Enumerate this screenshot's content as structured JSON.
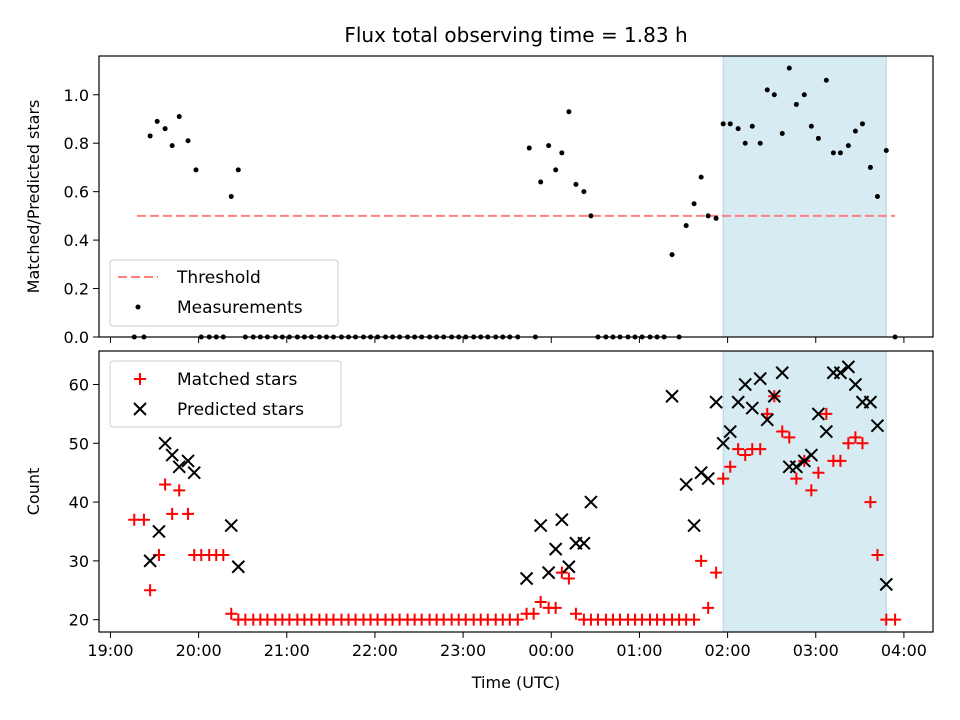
{
  "chart_data": [
    {
      "type": "scatter",
      "title": "Flux total observing time = 1.83 h",
      "xlabel": "",
      "ylabel": "Matched/Predicted stars",
      "ylim": [
        0,
        1.16
      ],
      "yticks": [
        "0.0",
        "0.2",
        "0.4",
        "0.6",
        "0.8",
        "1.0"
      ],
      "xlim": [
        18.87,
        28.33
      ],
      "highlight_span": [
        25.95,
        27.8
      ],
      "threshold": {
        "name": "Threshold",
        "value": 0.5,
        "x": [
          19.3,
          27.9
        ]
      },
      "legend": [
        "Threshold",
        "Measurements"
      ],
      "legend_position": "lower-left",
      "series": [
        {
          "name": "Measurements",
          "points": [
            [
              19.27,
              0
            ],
            [
              19.38,
              0
            ],
            [
              19.45,
              0.83
            ],
            [
              19.53,
              0.89
            ],
            [
              19.62,
              0.86
            ],
            [
              19.7,
              0.79
            ],
            [
              19.78,
              0.91
            ],
            [
              19.88,
              0.81
            ],
            [
              19.97,
              0.69
            ],
            [
              20.03,
              0
            ],
            [
              20.12,
              0
            ],
            [
              20.2,
              0
            ],
            [
              20.28,
              0
            ],
            [
              20.37,
              0.58
            ],
            [
              20.45,
              0.69
            ],
            [
              20.53,
              0
            ],
            [
              20.62,
              0
            ],
            [
              20.7,
              0
            ],
            [
              20.78,
              0
            ],
            [
              20.87,
              0
            ],
            [
              20.95,
              0
            ],
            [
              21.03,
              0
            ],
            [
              21.12,
              0
            ],
            [
              21.2,
              0
            ],
            [
              21.28,
              0
            ],
            [
              21.37,
              0
            ],
            [
              21.45,
              0
            ],
            [
              21.53,
              0
            ],
            [
              21.62,
              0
            ],
            [
              21.7,
              0
            ],
            [
              21.78,
              0
            ],
            [
              21.87,
              0
            ],
            [
              21.95,
              0
            ],
            [
              22.03,
              0
            ],
            [
              22.12,
              0
            ],
            [
              22.2,
              0
            ],
            [
              22.28,
              0
            ],
            [
              22.37,
              0
            ],
            [
              22.45,
              0
            ],
            [
              22.53,
              0
            ],
            [
              22.62,
              0
            ],
            [
              22.7,
              0
            ],
            [
              22.78,
              0
            ],
            [
              22.87,
              0
            ],
            [
              22.95,
              0
            ],
            [
              23.03,
              0
            ],
            [
              23.12,
              0
            ],
            [
              23.2,
              0
            ],
            [
              23.28,
              0
            ],
            [
              23.37,
              0
            ],
            [
              23.45,
              0
            ],
            [
              23.53,
              0
            ],
            [
              23.62,
              0
            ],
            [
              23.75,
              0.78
            ],
            [
              23.82,
              0
            ],
            [
              23.88,
              0.64
            ],
            [
              23.97,
              0.79
            ],
            [
              24.05,
              0.69
            ],
            [
              24.12,
              0.76
            ],
            [
              24.2,
              0.93
            ],
            [
              24.28,
              0.63
            ],
            [
              24.37,
              0.6
            ],
            [
              24.45,
              0.5
            ],
            [
              24.53,
              0
            ],
            [
              24.62,
              0
            ],
            [
              24.7,
              0
            ],
            [
              24.78,
              0
            ],
            [
              24.87,
              0
            ],
            [
              24.95,
              0
            ],
            [
              25.03,
              0
            ],
            [
              25.12,
              0
            ],
            [
              25.2,
              0
            ],
            [
              25.28,
              0
            ],
            [
              25.37,
              0.34
            ],
            [
              25.45,
              0
            ],
            [
              25.53,
              0.46
            ],
            [
              25.62,
              0.55
            ],
            [
              25.7,
              0.66
            ],
            [
              25.78,
              0.5
            ],
            [
              25.87,
              0.49
            ],
            [
              25.95,
              0.88
            ],
            [
              26.03,
              0.88
            ],
            [
              26.12,
              0.86
            ],
            [
              26.2,
              0.8
            ],
            [
              26.28,
              0.87
            ],
            [
              26.37,
              0.8
            ],
            [
              26.45,
              1.02
            ],
            [
              26.53,
              1.0
            ],
            [
              26.62,
              0.84
            ],
            [
              26.7,
              1.11
            ],
            [
              26.78,
              0.96
            ],
            [
              26.87,
              1.0
            ],
            [
              26.95,
              0.87
            ],
            [
              27.03,
              0.82
            ],
            [
              27.12,
              1.06
            ],
            [
              27.2,
              0.76
            ],
            [
              27.28,
              0.76
            ],
            [
              27.37,
              0.79
            ],
            [
              27.45,
              0.85
            ],
            [
              27.53,
              0.88
            ],
            [
              27.62,
              0.7
            ],
            [
              27.7,
              0.58
            ],
            [
              27.8,
              0.77
            ],
            [
              27.9,
              0
            ]
          ]
        }
      ]
    },
    {
      "type": "scatter",
      "title": "",
      "xlabel": "Time (UTC)",
      "ylabel": "Count",
      "ylim": [
        17.9,
        65.7
      ],
      "yticks": [
        "20",
        "30",
        "40",
        "50",
        "60"
      ],
      "xlim": [
        18.87,
        28.33
      ],
      "xticks": [
        "19:00",
        "20:00",
        "21:00",
        "22:00",
        "23:00",
        "00:00",
        "01:00",
        "02:00",
        "03:00",
        "04:00"
      ],
      "highlight_span": [
        25.95,
        27.8
      ],
      "legend": [
        "Matched stars",
        "Predicted stars"
      ],
      "legend_position": "upper-left",
      "series": [
        {
          "name": "Matched stars",
          "marker": "+",
          "color": "#ff0000",
          "points": [
            [
              19.27,
              37
            ],
            [
              19.38,
              37
            ],
            [
              19.45,
              25
            ],
            [
              19.55,
              31
            ],
            [
              19.62,
              43
            ],
            [
              19.7,
              38
            ],
            [
              19.78,
              42
            ],
            [
              19.88,
              38
            ],
            [
              19.95,
              31
            ],
            [
              20.03,
              31
            ],
            [
              20.12,
              31
            ],
            [
              20.2,
              31
            ],
            [
              20.28,
              31
            ],
            [
              20.37,
              21
            ],
            [
              20.45,
              20
            ],
            [
              20.53,
              20
            ],
            [
              20.62,
              20
            ],
            [
              20.7,
              20
            ],
            [
              20.78,
              20
            ],
            [
              20.87,
              20
            ],
            [
              20.95,
              20
            ],
            [
              21.03,
              20
            ],
            [
              21.12,
              20
            ],
            [
              21.2,
              20
            ],
            [
              21.28,
              20
            ],
            [
              21.37,
              20
            ],
            [
              21.45,
              20
            ],
            [
              21.53,
              20
            ],
            [
              21.62,
              20
            ],
            [
              21.7,
              20
            ],
            [
              21.78,
              20
            ],
            [
              21.87,
              20
            ],
            [
              21.95,
              20
            ],
            [
              22.03,
              20
            ],
            [
              22.12,
              20
            ],
            [
              22.2,
              20
            ],
            [
              22.28,
              20
            ],
            [
              22.37,
              20
            ],
            [
              22.45,
              20
            ],
            [
              22.53,
              20
            ],
            [
              22.62,
              20
            ],
            [
              22.7,
              20
            ],
            [
              22.78,
              20
            ],
            [
              22.87,
              20
            ],
            [
              22.95,
              20
            ],
            [
              23.03,
              20
            ],
            [
              23.12,
              20
            ],
            [
              23.2,
              20
            ],
            [
              23.28,
              20
            ],
            [
              23.37,
              20
            ],
            [
              23.45,
              20
            ],
            [
              23.53,
              20
            ],
            [
              23.62,
              20
            ],
            [
              23.72,
              21
            ],
            [
              23.8,
              21
            ],
            [
              23.88,
              23
            ],
            [
              23.97,
              22
            ],
            [
              24.05,
              22
            ],
            [
              24.12,
              28
            ],
            [
              24.2,
              27
            ],
            [
              24.28,
              21
            ],
            [
              24.37,
              20
            ],
            [
              24.45,
              20
            ],
            [
              24.53,
              20
            ],
            [
              24.62,
              20
            ],
            [
              24.7,
              20
            ],
            [
              24.78,
              20
            ],
            [
              24.87,
              20
            ],
            [
              24.95,
              20
            ],
            [
              25.03,
              20
            ],
            [
              25.12,
              20
            ],
            [
              25.2,
              20
            ],
            [
              25.28,
              20
            ],
            [
              25.37,
              20
            ],
            [
              25.45,
              20
            ],
            [
              25.53,
              20
            ],
            [
              25.62,
              20
            ],
            [
              25.7,
              30
            ],
            [
              25.78,
              22
            ],
            [
              25.87,
              28
            ],
            [
              25.95,
              44
            ],
            [
              26.03,
              46
            ],
            [
              26.12,
              49
            ],
            [
              26.2,
              48
            ],
            [
              26.28,
              49
            ],
            [
              26.37,
              49
            ],
            [
              26.45,
              55
            ],
            [
              26.53,
              58
            ],
            [
              26.62,
              52
            ],
            [
              26.7,
              51
            ],
            [
              26.78,
              44
            ],
            [
              26.87,
              47
            ],
            [
              26.95,
              42
            ],
            [
              27.03,
              45
            ],
            [
              27.12,
              55
            ],
            [
              27.2,
              47
            ],
            [
              27.28,
              47
            ],
            [
              27.37,
              50
            ],
            [
              27.45,
              51
            ],
            [
              27.53,
              50
            ],
            [
              27.62,
              40
            ],
            [
              27.7,
              31
            ],
            [
              27.8,
              20
            ],
            [
              27.9,
              20
            ]
          ]
        },
        {
          "name": "Predicted stars",
          "marker": "x",
          "color": "#000000",
          "points": [
            [
              19.45,
              30
            ],
            [
              19.55,
              35
            ],
            [
              19.62,
              50
            ],
            [
              19.7,
              48
            ],
            [
              19.78,
              46
            ],
            [
              19.88,
              47
            ],
            [
              19.95,
              45
            ],
            [
              20.37,
              36
            ],
            [
              20.45,
              29
            ],
            [
              23.72,
              27
            ],
            [
              23.88,
              36
            ],
            [
              23.97,
              28
            ],
            [
              24.05,
              32
            ],
            [
              24.12,
              37
            ],
            [
              24.2,
              29
            ],
            [
              24.28,
              33
            ],
            [
              24.37,
              33
            ],
            [
              24.45,
              40
            ],
            [
              25.37,
              58
            ],
            [
              25.53,
              43
            ],
            [
              25.62,
              36
            ],
            [
              25.7,
              45
            ],
            [
              25.78,
              44
            ],
            [
              25.87,
              57
            ],
            [
              25.95,
              50
            ],
            [
              26.03,
              52
            ],
            [
              26.12,
              57
            ],
            [
              26.2,
              60
            ],
            [
              26.28,
              56
            ],
            [
              26.37,
              61
            ],
            [
              26.45,
              54
            ],
            [
              26.53,
              58
            ],
            [
              26.62,
              62
            ],
            [
              26.7,
              46
            ],
            [
              26.78,
              46
            ],
            [
              26.87,
              47
            ],
            [
              26.95,
              48
            ],
            [
              27.03,
              55
            ],
            [
              27.12,
              52
            ],
            [
              27.2,
              62
            ],
            [
              27.28,
              62
            ],
            [
              27.37,
              63
            ],
            [
              27.45,
              60
            ],
            [
              27.53,
              57
            ],
            [
              27.62,
              57
            ],
            [
              27.7,
              53
            ],
            [
              27.8,
              26
            ]
          ]
        }
      ]
    }
  ]
}
